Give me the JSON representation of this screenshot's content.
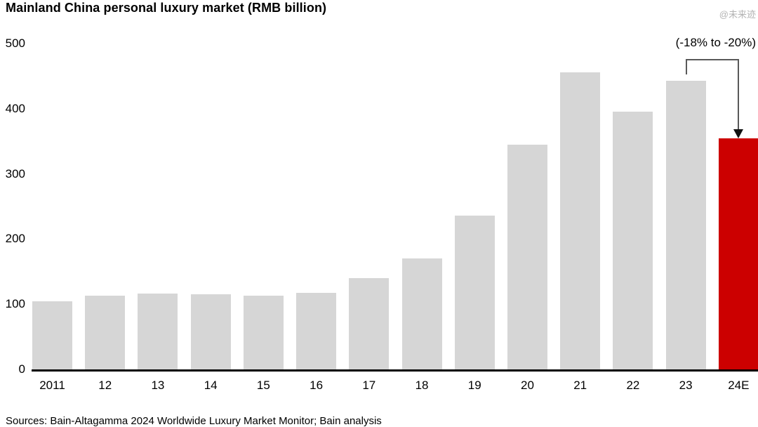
{
  "title": "Mainland China personal luxury market (RMB billion)",
  "watermark": "@未来迹",
  "source": "Sources: Bain-Altagamma 2024 Worldwide Luxury Market Monitor; Bain analysis",
  "annotation": {
    "label": "(-18% to -20%)"
  },
  "colors": {
    "bar": "#d6d6d6",
    "highlight_bar": "#cc0000",
    "axis_line": "#000000",
    "connector": "#595959",
    "watermark": "#b3b3b3"
  },
  "chart_data": {
    "type": "bar",
    "title": "Mainland China personal luxury market (RMB billion)",
    "categories": [
      "2011",
      "12",
      "13",
      "14",
      "15",
      "16",
      "17",
      "18",
      "19",
      "20",
      "21",
      "22",
      "23",
      "24E"
    ],
    "values": [
      105,
      113,
      116,
      115,
      113,
      117,
      140,
      170,
      236,
      345,
      456,
      396,
      443,
      355
    ],
    "highlight_category": "24E",
    "xlabel": "",
    "ylabel": "",
    "ylim": [
      0,
      500
    ],
    "yticks": [
      0,
      100,
      200,
      300,
      400,
      500
    ],
    "grid": false,
    "legend": false,
    "annotation": {
      "text": "(-18% to -20%)",
      "from_category": "23",
      "to_category": "24E"
    }
  }
}
